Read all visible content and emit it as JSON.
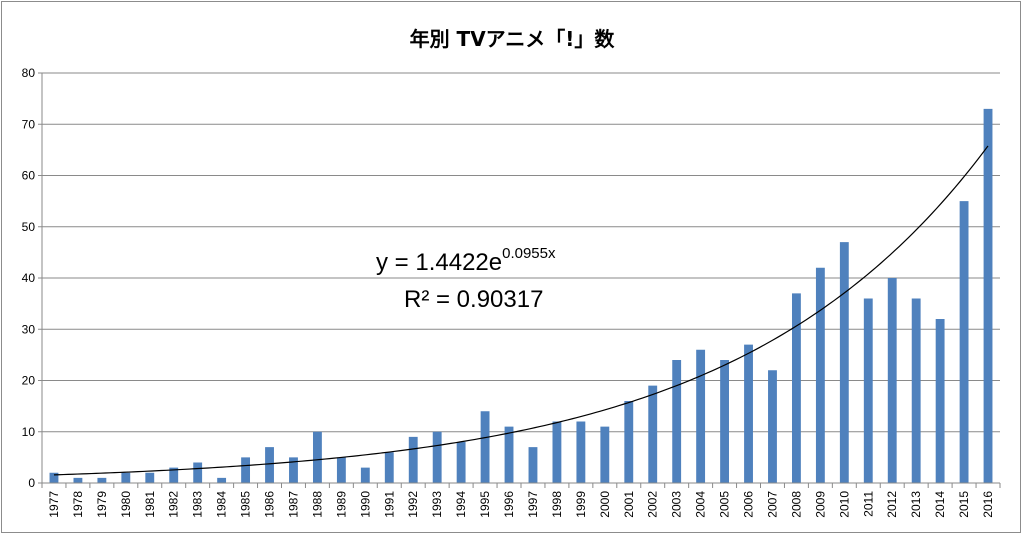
{
  "chart_data": {
    "type": "bar",
    "title": "年別 TVアニメ「!」数",
    "xlabel": "",
    "ylabel": "",
    "ylim": [
      0,
      80
    ],
    "yticks": [
      0,
      10,
      20,
      30,
      40,
      50,
      60,
      70,
      80
    ],
    "grid": true,
    "legend": "none",
    "categories": [
      "1977",
      "1978",
      "1979",
      "1980",
      "1981",
      "1982",
      "1983",
      "1984",
      "1985",
      "1986",
      "1987",
      "1988",
      "1989",
      "1990",
      "1991",
      "1992",
      "1993",
      "1994",
      "1995",
      "1996",
      "1997",
      "1998",
      "1999",
      "2000",
      "2001",
      "2002",
      "2003",
      "2004",
      "2005",
      "2006",
      "2007",
      "2008",
      "2009",
      "2010",
      "2011",
      "2012",
      "2013",
      "2014",
      "2015",
      "2016"
    ],
    "series": [
      {
        "values": [
          2,
          1,
          1,
          2,
          2,
          3,
          4,
          1,
          5,
          7,
          5,
          10,
          5,
          3,
          6,
          9,
          10,
          8,
          14,
          11,
          7,
          12,
          12,
          11,
          16,
          19,
          24,
          26,
          24,
          27,
          22,
          37,
          42,
          47,
          36,
          40,
          36,
          32,
          55,
          73
        ],
        "color": "#4f81bd"
      }
    ],
    "trendline": {
      "type": "exponential",
      "a": 1.4422,
      "b": 0.0955,
      "color": "#000000",
      "equation_base": "y = 1.4422e",
      "equation_exponent": "0.0955x",
      "r_squared_label": "R² = 0.90317"
    }
  }
}
